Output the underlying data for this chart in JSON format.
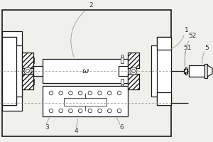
{
  "bg_color": "#f0f0ec",
  "line_color": "#1a1a1a",
  "label_color": "#333333",
  "leader_color": "#999999",
  "fig_width": 3.0,
  "fig_height": 2.0,
  "dpi": 100
}
